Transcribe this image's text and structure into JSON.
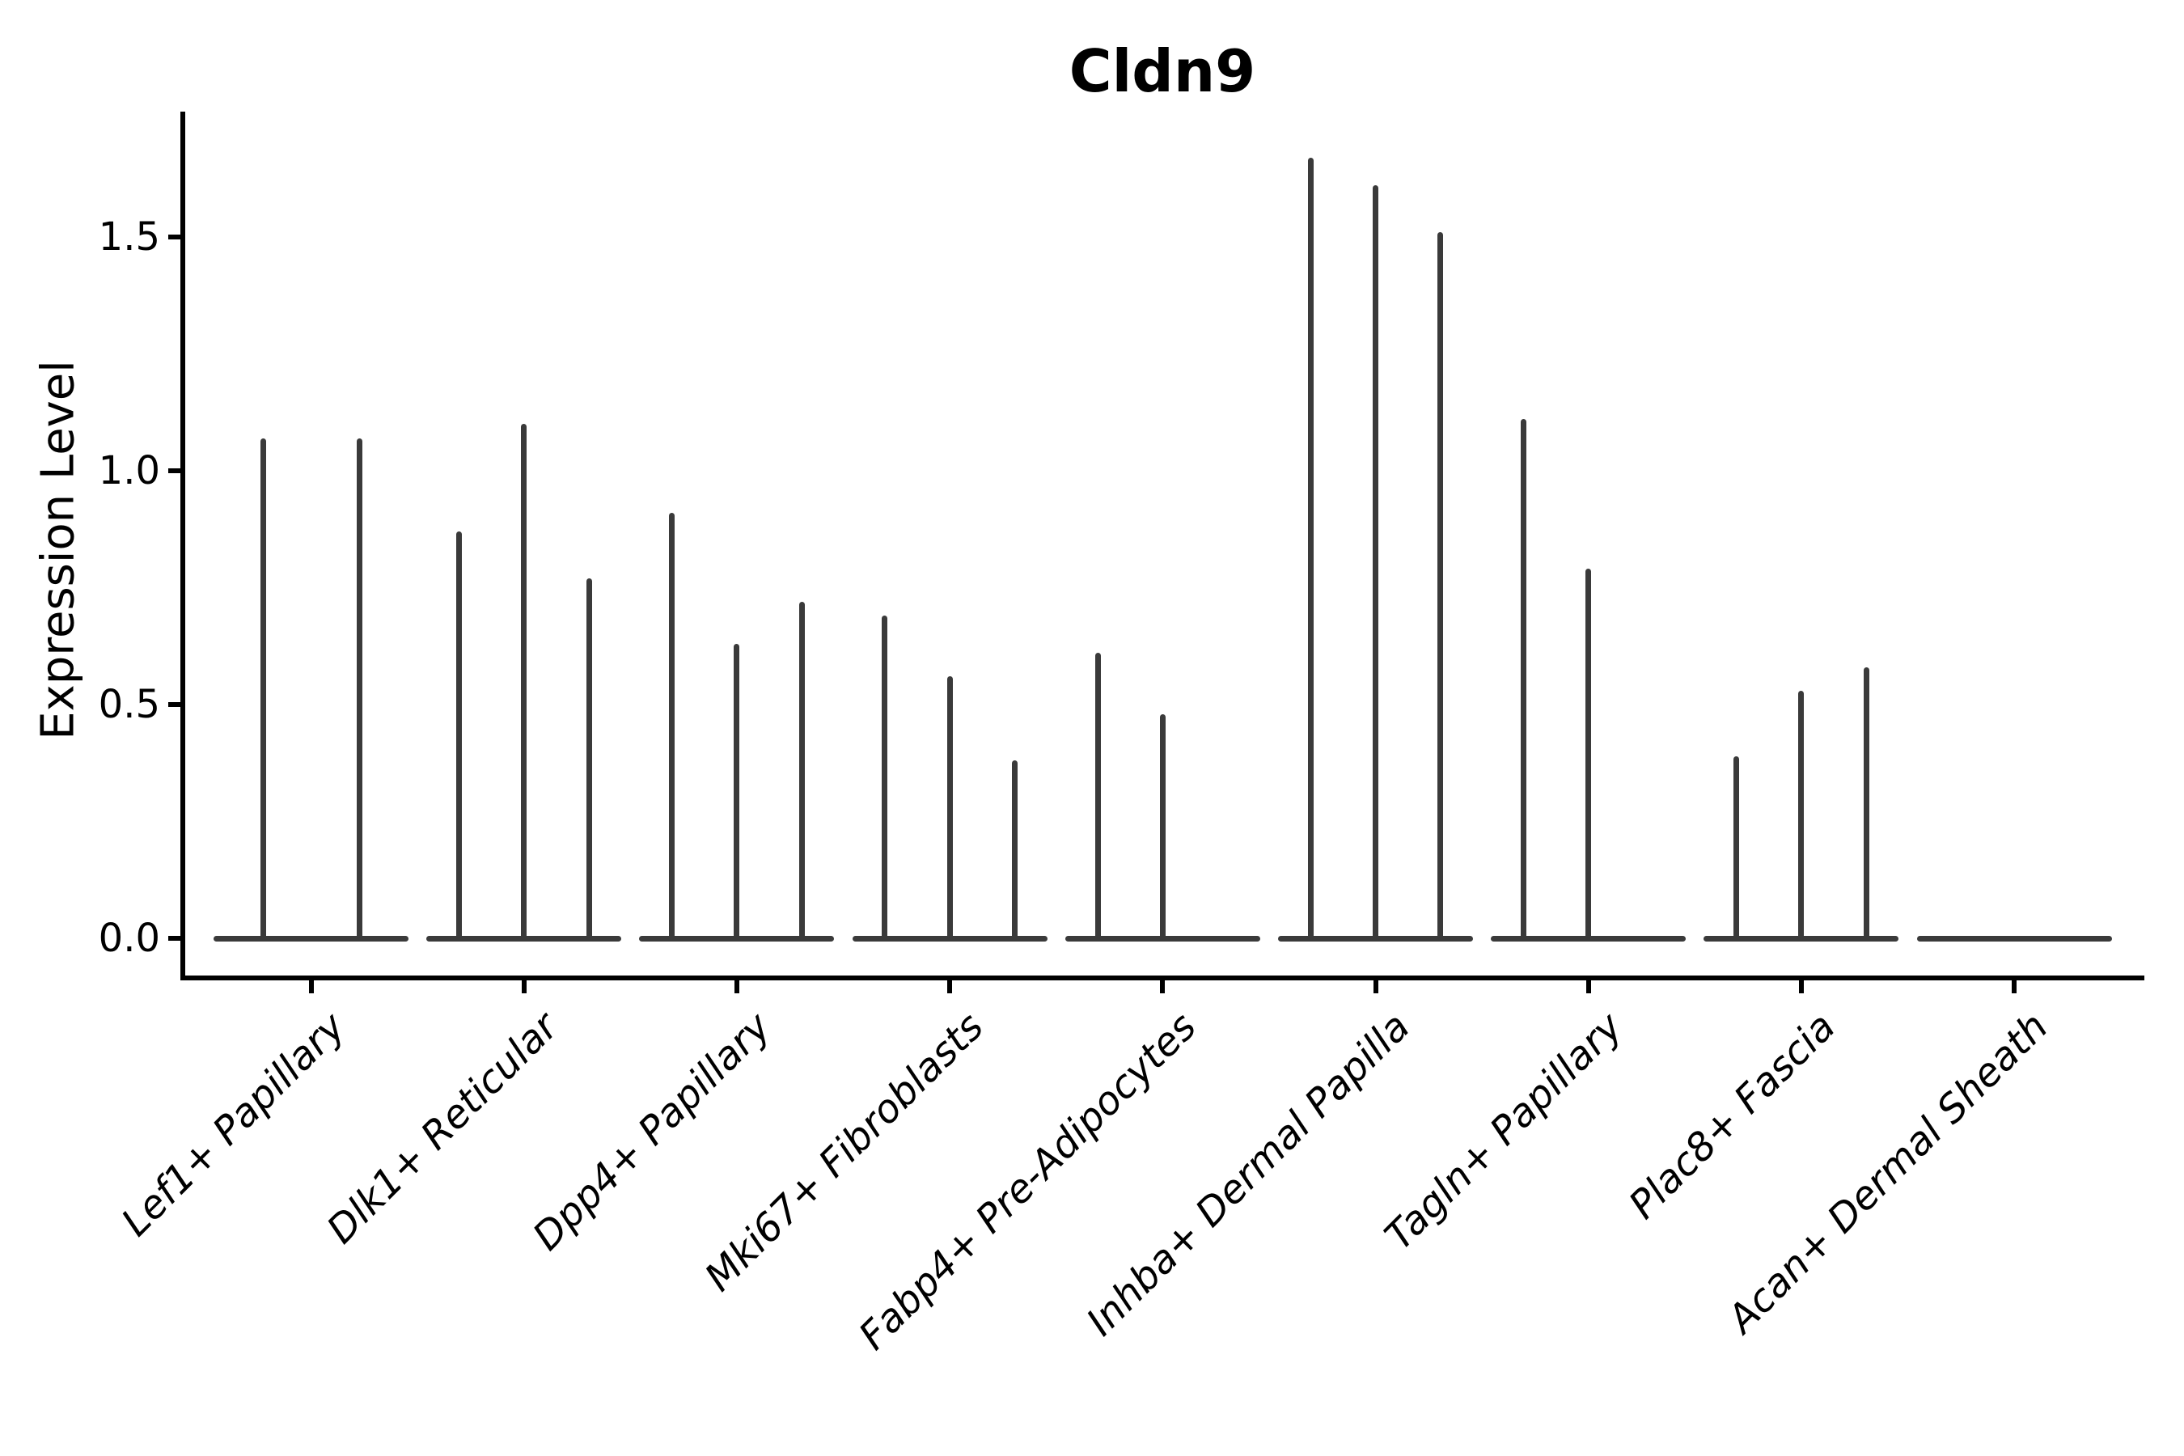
{
  "chart_data": {
    "type": "violin",
    "title": "Cldn9",
    "ylabel": "Expression Level",
    "xlabel": "",
    "ylim": [
      -0.09,
      1.76
    ],
    "grid": false,
    "legend": "none",
    "yticks": {
      "values": [
        0.0,
        0.5,
        1.0,
        1.5
      ],
      "labels": [
        "0.0",
        "0.5",
        "1.0",
        "1.5"
      ]
    },
    "categories": [
      "Lef1+ Papillary",
      "Dlk1+ Reticular",
      "Dpp4+ Papillary",
      "Mki67+ Fibroblasts",
      "Fabp4+ Pre-Adipocytes",
      "Inhba+ Dermal Papilla",
      "Tagln+ Papillary",
      "Plac8+ Fascia",
      "Acan+ Dermal Sheath"
    ],
    "violins": [
      {
        "category": "Lef1+ Papillary",
        "spike_peaks": [
          1.07,
          1.07
        ]
      },
      {
        "category": "Dlk1+ Reticular",
        "spike_peaks": [
          0.87,
          1.1,
          0.77
        ]
      },
      {
        "category": "Dpp4+ Papillary",
        "spike_peaks": [
          0.91,
          0.63,
          0.72
        ]
      },
      {
        "category": "Mki67+ Fibroblasts",
        "spike_peaks": [
          0.69,
          0.56,
          0.38
        ]
      },
      {
        "category": "Fabp4+ Pre-Adipocytes",
        "spike_peaks": [
          0.61,
          0.48,
          0.0
        ]
      },
      {
        "category": "Inhba+ Dermal Papilla",
        "spike_peaks": [
          1.67,
          1.61,
          1.51
        ]
      },
      {
        "category": "Tagln+ Papillary",
        "spike_peaks": [
          1.11,
          0.79,
          0.0
        ]
      },
      {
        "category": "Plac8+ Fascia",
        "spike_peaks": [
          0.39,
          0.53,
          0.58
        ]
      },
      {
        "category": "Acan+ Dermal Sheath",
        "spike_peaks": [
          0.0,
          0.0,
          0.0
        ]
      }
    ],
    "colors": {
      "violin": "#3a3a3a",
      "axis": "#000000",
      "text": "#000000",
      "background": "#ffffff"
    }
  }
}
